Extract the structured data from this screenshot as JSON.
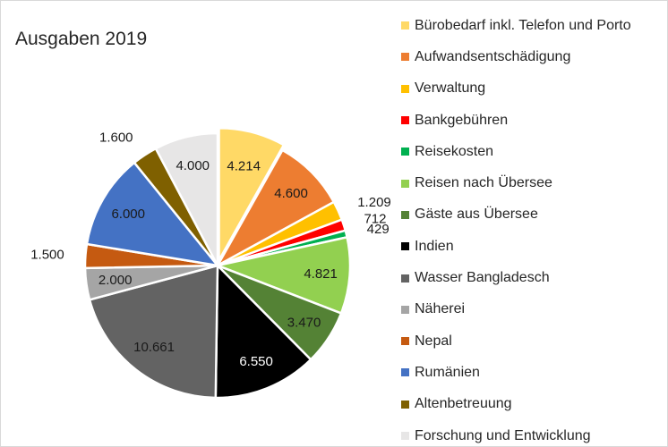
{
  "chart_data": {
    "type": "pie",
    "title": "Ausgaben 2019",
    "legend_position": "right",
    "start_angle_deg": 0,
    "direction": "clockwise",
    "slices": [
      {
        "label": "Bürobedarf inkl. Telefon und Porto",
        "value": 4214,
        "display": "4.214",
        "color": "#FFD966",
        "label_pos": "inside",
        "exploded": true
      },
      {
        "label": "Aufwandsentschädigung",
        "value": 4600,
        "display": "4.600",
        "color": "#ED7D31",
        "label_pos": "inside"
      },
      {
        "label": "Verwaltung",
        "value": 1209,
        "display": "1.209",
        "color": "#FFC000",
        "label_pos": "outside"
      },
      {
        "label": "Bankgebühren",
        "value": 712,
        "display": "712",
        "color": "#FF0000",
        "label_pos": "outside"
      },
      {
        "label": "Reisekosten",
        "value": 429,
        "display": "429",
        "color": "#00B050",
        "label_pos": "outside"
      },
      {
        "label": "Reisen nach Übersee",
        "value": 4821,
        "display": "4.821",
        "color": "#92D050",
        "label_pos": "inside"
      },
      {
        "label": "Gäste aus Übersee",
        "value": 3470,
        "display": "3.470",
        "color": "#548235",
        "label_pos": "inside"
      },
      {
        "label": "Indien",
        "value": 6550,
        "display": "6.550",
        "color": "#000000",
        "label_pos": "inside",
        "label_color": "#FFFFFF"
      },
      {
        "label": "Wasser Bangladesch",
        "value": 10661,
        "display": "10.661",
        "color": "#636363",
        "label_pos": "inside"
      },
      {
        "label": "Näherei",
        "value": 2000,
        "display": "2.000",
        "color": "#A5A5A5",
        "label_pos": "inside"
      },
      {
        "label": "Nepal",
        "value": 1500,
        "display": "1.500",
        "color": "#C55A11",
        "label_pos": "outside"
      },
      {
        "label": "Rumänien",
        "value": 6000,
        "display": "6.000",
        "color": "#4472C4",
        "label_pos": "inside"
      },
      {
        "label": "Altenbetreuung",
        "value": 1600,
        "display": "1.600",
        "color": "#7F6000",
        "label_pos": "outside"
      },
      {
        "label": "Forschung und Entwicklung",
        "value": 4000,
        "display": "4.000",
        "color": "#E7E6E6",
        "label_pos": "inside"
      }
    ]
  }
}
